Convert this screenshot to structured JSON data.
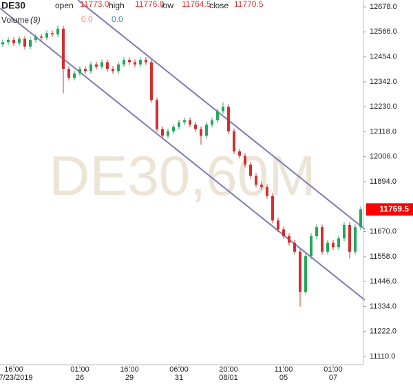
{
  "chart_data": {
    "type": "candlestick",
    "title": "DE30",
    "watermark": "DE30,60M",
    "header": [
      {
        "name": "open",
        "value": {
          "value": 11773,
          "label": "11773.0"
        }
      },
      {
        "name": "high",
        "value": {
          "value": 11776,
          "label": "11776.0"
        }
      },
      {
        "name": "low",
        "value": {
          "value": 11764.5,
          "label": "11764.5"
        }
      },
      {
        "name": "close",
        "value": {
          "value": 11770.5,
          "label": "11770.5"
        }
      }
    ],
    "volume": {
      "name": "Volume",
      "period": "(9)",
      "values": [
        {
          "value": 0,
          "label": "0.0",
          "color": "#f48a8a"
        },
        {
          "value": 0,
          "label": "0.0",
          "color": "#4a78c8"
        }
      ]
    },
    "last_price": 11769.5,
    "last_price_color": "#ff0000",
    "up_color": "#26a65b",
    "down_color": "#d32f2f",
    "categories": [
      null,
      null,
      "16:00",
      null,
      null,
      null,
      null,
      null,
      null,
      null,
      null,
      null,
      null,
      null,
      "01:00",
      null,
      null,
      null,
      null,
      null,
      null,
      null,
      null,
      "16:00",
      null,
      null,
      null,
      null,
      null,
      null,
      null,
      null,
      "06:00",
      null,
      null,
      null,
      null,
      null,
      null,
      null,
      null,
      "20:00",
      null,
      null,
      null,
      null,
      null,
      null,
      null,
      null,
      null,
      "11:00",
      null,
      null,
      null,
      null,
      null,
      null,
      null,
      null,
      "01:00",
      null,
      null,
      null,
      null,
      null
    ],
    "dates": [
      null,
      null,
      "07/23/2019",
      null,
      null,
      null,
      null,
      null,
      null,
      null,
      null,
      null,
      null,
      null,
      "26",
      null,
      null,
      null,
      null,
      null,
      null,
      null,
      null,
      "29",
      null,
      null,
      null,
      null,
      null,
      null,
      null,
      null,
      "31",
      null,
      null,
      null,
      null,
      null,
      null,
      null,
      null,
      "08/01",
      null,
      null,
      null,
      null,
      null,
      null,
      null,
      null,
      null,
      "05",
      null,
      null,
      null,
      null,
      null,
      null,
      null,
      null,
      "07",
      null,
      null,
      null,
      null,
      null
    ],
    "open": [
      12510,
      12520,
      12530,
      12515,
      12535,
      12500,
      12530,
      12545,
      12540,
      12560,
      12555,
      12580,
      12400,
      12360,
      12380,
      12400,
      12390,
      12420,
      12410,
      12430,
      12400,
      12390,
      12420,
      12440,
      12430,
      12420,
      12440,
      12430,
      12260,
      12130,
      12100,
      12120,
      12140,
      12160,
      12170,
      12150,
      12130,
      12100,
      12150,
      12170,
      12210,
      12230,
      12120,
      12030,
      12010,
      11970,
      11920,
      11880,
      11870,
      11830,
      11720,
      11680,
      11650,
      11620,
      11580,
      11400,
      11560,
      11650,
      11690,
      11580,
      11620,
      11600,
      11640,
      11700,
      11580,
      11690
    ],
    "high": [
      12532,
      12542,
      12542,
      12547,
      12547,
      12542,
      12557,
      12557,
      12572,
      12572,
      12595,
      12592,
      12412,
      12392,
      12412,
      12412,
      12432,
      12432,
      12442,
      12442,
      12412,
      12432,
      12452,
      12452,
      12442,
      12452,
      12452,
      12442,
      12272,
      12142,
      12132,
      12152,
      12172,
      12182,
      12182,
      12162,
      12142,
      12162,
      12182,
      12222,
      12250,
      12242,
      12132,
      12042,
      12022,
      11982,
      11932,
      11892,
      11882,
      11842,
      11732,
      11692,
      11662,
      11632,
      11592,
      11572,
      11662,
      11702,
      11702,
      11632,
      11632,
      11652,
      11712,
      11712,
      11702,
      11782
    ],
    "low": [
      12498,
      12508,
      12503,
      12503,
      12488,
      12488,
      12518,
      12528,
      12528,
      12543,
      12543,
      12290,
      12348,
      12348,
      12368,
      12378,
      12378,
      12398,
      12398,
      12388,
      12378,
      12378,
      12408,
      12418,
      12408,
      12408,
      12418,
      12248,
      12118,
      12088,
      12088,
      12108,
      12128,
      12148,
      12138,
      12118,
      12060,
      12088,
      12138,
      12158,
      12198,
      12108,
      12018,
      11998,
      11958,
      11908,
      11868,
      11858,
      11818,
      11708,
      11668,
      11638,
      11608,
      11568,
      11334,
      11388,
      11548,
      11638,
      11568,
      11568,
      11588,
      11588,
      11628,
      11550,
      11568,
      11678
    ],
    "close": [
      12520,
      12530,
      12515,
      12535,
      12500,
      12530,
      12545,
      12540,
      12560,
      12555,
      12580,
      12400,
      12360,
      12380,
      12400,
      12390,
      12420,
      12410,
      12430,
      12400,
      12390,
      12420,
      12440,
      12430,
      12420,
      12440,
      12430,
      12260,
      12130,
      12100,
      12120,
      12140,
      12160,
      12170,
      12150,
      12130,
      12100,
      12150,
      12170,
      12210,
      12230,
      12120,
      12030,
      12010,
      11970,
      11920,
      11880,
      11870,
      11830,
      11720,
      11680,
      11650,
      11620,
      11580,
      11400,
      11560,
      11650,
      11690,
      11580,
      11620,
      11600,
      11640,
      11700,
      11580,
      11690,
      11770
    ],
    "ylim": [
      11073,
      12709
    ],
    "yticks": [
      {
        "value": 11110,
        "label": "11110.0"
      },
      {
        "value": 11222,
        "label": "11222.0"
      },
      {
        "value": 11334,
        "label": "11334.0"
      },
      {
        "value": 11446,
        "label": "11446.0"
      },
      {
        "value": 11558,
        "label": "11558.0"
      },
      {
        "value": 11670,
        "label": "11670.0"
      },
      {
        "value": 11894,
        "label": "11894.0"
      },
      {
        "value": 12006,
        "label": "12006.0"
      },
      {
        "value": 12118,
        "label": "12118.0"
      },
      {
        "value": 12230,
        "label": "12230.0"
      },
      {
        "value": 12342,
        "label": "12342.0"
      },
      {
        "value": 12454,
        "label": "12454.0"
      },
      {
        "value": 12566,
        "label": "12566.0"
      },
      {
        "value": 12678,
        "label": "12678.0"
      }
    ]
  }
}
